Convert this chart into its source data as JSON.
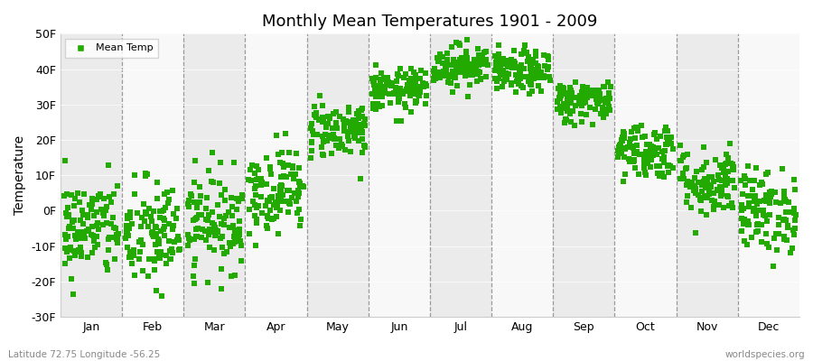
{
  "title": "Monthly Mean Temperatures 1901 - 2009",
  "ylabel": "Temperature",
  "dot_color": "#22AA00",
  "bg_colors": [
    "#ebebeb",
    "#f8f8f8"
  ],
  "ylim": [
    -30,
    50
  ],
  "yticks": [
    -30,
    -20,
    -10,
    0,
    10,
    20,
    30,
    40,
    50
  ],
  "ytick_labels": [
    "-30F",
    "-20F",
    "-10F",
    "0F",
    "10F",
    "20F",
    "30F",
    "40F",
    "50F"
  ],
  "months": [
    "Jan",
    "Feb",
    "Mar",
    "Apr",
    "May",
    "Jun",
    "Jul",
    "Aug",
    "Sep",
    "Oct",
    "Nov",
    "Dec"
  ],
  "month_tick_positions": [
    0.5,
    1.5,
    2.5,
    3.5,
    4.5,
    5.5,
    6.5,
    7.5,
    8.5,
    9.5,
    10.5,
    11.5
  ],
  "mean_temps_F": [
    -5,
    -7,
    -3,
    6,
    23,
    34,
    41,
    39,
    31,
    17,
    8,
    0
  ],
  "std_temps_F": [
    7,
    8,
    7,
    6,
    4,
    3,
    3,
    3,
    3,
    4,
    5,
    6
  ],
  "n_years": 109,
  "footnote_left": "Latitude 72.75 Longitude -56.25",
  "footnote_right": "worldspecies.org",
  "marker_size": 25
}
